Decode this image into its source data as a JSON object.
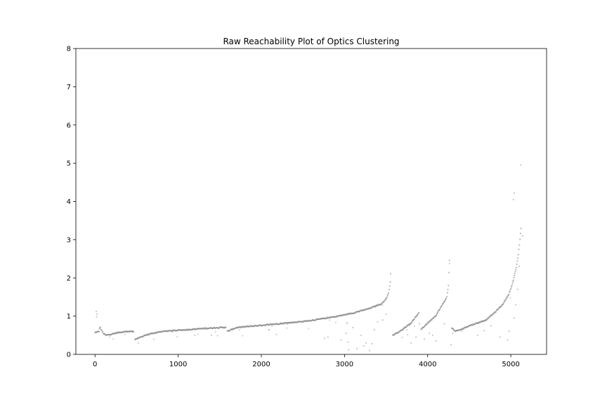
{
  "chart_data": {
    "type": "scatter",
    "title": "Raw Reachability Plot of Optics Clustering",
    "xlabel": "",
    "ylabel": "",
    "xlim": [
      -230,
      5430
    ],
    "ylim": [
      0,
      8
    ],
    "xticks": [
      0,
      1000,
      2000,
      3000,
      4000,
      5000
    ],
    "yticks": [
      0,
      1,
      2,
      3,
      4,
      5,
      6,
      7,
      8
    ],
    "grid": false,
    "marker_color": "#808080",
    "marker_alpha": 0.55,
    "trend_segments": [
      {
        "x": [
          0,
          50,
          60,
          80,
          100,
          130,
          200,
          300,
          400,
          470
        ],
        "y": [
          0.57,
          0.6,
          0.72,
          0.62,
          0.55,
          0.5,
          0.53,
          0.58,
          0.6,
          0.6
        ]
      },
      {
        "x": [
          480,
          520,
          600,
          700,
          800,
          1000,
          1200,
          1400,
          1580
        ],
        "y": [
          0.4,
          0.42,
          0.5,
          0.55,
          0.6,
          0.63,
          0.66,
          0.69,
          0.71
        ]
      },
      {
        "x": [
          1590,
          1700,
          1900,
          2100,
          2300,
          2500,
          2700,
          2900,
          3100,
          3300,
          3450,
          3500,
          3530,
          3550,
          3560
        ],
        "y": [
          0.6,
          0.7,
          0.74,
          0.78,
          0.82,
          0.86,
          0.92,
          0.99,
          1.08,
          1.2,
          1.33,
          1.45,
          1.6,
          1.9,
          2.35
        ]
      },
      {
        "x": [
          3580,
          3650,
          3700,
          3800,
          3900
        ],
        "y": [
          0.5,
          0.58,
          0.66,
          0.82,
          1.1
        ]
      },
      {
        "x": [
          3920,
          4000,
          4100,
          4200,
          4230,
          4250,
          4270
        ],
        "y": [
          0.65,
          0.82,
          1.02,
          1.38,
          1.5,
          1.8,
          2.8
        ]
      },
      {
        "x": [
          4290,
          4330,
          4400,
          4500,
          4600,
          4700,
          4800,
          4900,
          4970,
          5020,
          5060,
          5090,
          5110,
          5130
        ],
        "y": [
          0.7,
          0.6,
          0.65,
          0.75,
          0.82,
          0.9,
          1.08,
          1.3,
          1.55,
          1.85,
          2.2,
          2.6,
          3.0,
          3.45
        ]
      }
    ],
    "outliers": [
      [
        15,
        1.12
      ],
      [
        20,
        0.98
      ],
      [
        25,
        1.05
      ],
      [
        520,
        0.3
      ],
      [
        1200,
        0.5
      ],
      [
        1400,
        0.5
      ],
      [
        2180,
        0.52
      ],
      [
        2760,
        0.42
      ],
      [
        2800,
        0.45
      ],
      [
        2960,
        0.38
      ],
      [
        3020,
        0.55
      ],
      [
        3040,
        0.32
      ],
      [
        3050,
        0.12
      ],
      [
        3100,
        0.7
      ],
      [
        3150,
        0.15
      ],
      [
        3200,
        0.5
      ],
      [
        3230,
        0.22
      ],
      [
        3260,
        0.3
      ],
      [
        3300,
        0.1
      ],
      [
        3330,
        0.28
      ],
      [
        3360,
        0.65
      ],
      [
        3400,
        0.85
      ],
      [
        3460,
        0.9
      ],
      [
        3500,
        1.05
      ],
      [
        3800,
        0.3
      ],
      [
        3860,
        0.45
      ],
      [
        3900,
        0.8
      ],
      [
        3960,
        0.4
      ],
      [
        4020,
        0.55
      ],
      [
        4060,
        0.5
      ],
      [
        4100,
        0.35
      ],
      [
        4200,
        0.8
      ],
      [
        4280,
        0.25
      ],
      [
        4300,
        0.55
      ],
      [
        4600,
        0.5
      ],
      [
        4680,
        0.62
      ],
      [
        4760,
        0.75
      ],
      [
        4870,
        0.45
      ],
      [
        4960,
        0.38
      ],
      [
        4980,
        0.6
      ],
      [
        5040,
        0.95
      ],
      [
        5060,
        1.3
      ],
      [
        5080,
        1.7
      ],
      [
        5100,
        2.3
      ],
      [
        5030,
        4.05
      ],
      [
        5040,
        4.22
      ],
      [
        5120,
        4.95
      ],
      [
        5140,
        3.1
      ]
    ]
  }
}
